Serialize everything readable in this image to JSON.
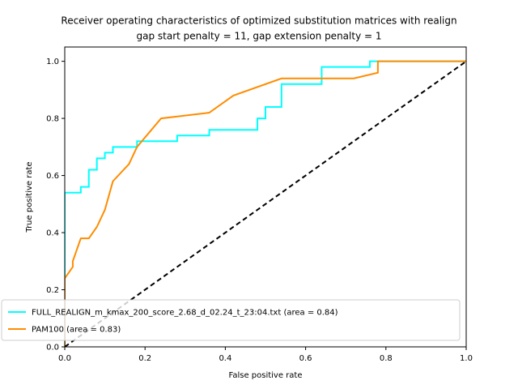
{
  "chart_data": {
    "type": "line",
    "title": "Receiver operating characteristics of optimized substitution matrices with realign",
    "subtitle": "gap start penalty = 11, gap extension penalty = 1",
    "xlabel": "False positive rate",
    "ylabel": "True positive rate",
    "xlim": [
      0.0,
      1.0
    ],
    "ylim": [
      0.0,
      1.05
    ],
    "xticks": [
      "0.0",
      "0.2",
      "0.4",
      "0.6",
      "0.8",
      "1.0"
    ],
    "yticks": [
      "0.0",
      "0.2",
      "0.4",
      "0.6",
      "0.8",
      "1.0"
    ],
    "grid": false,
    "legend_position": "lower-left",
    "series": [
      {
        "name": "FULL_REALIGN_m_kmax_200_score_2.68_d_02.24_t_23:04.txt (area = 0.84)",
        "color": "#00ffff",
        "step": true,
        "x": [
          0.0,
          0.0,
          0.04,
          0.04,
          0.06,
          0.06,
          0.08,
          0.08,
          0.1,
          0.1,
          0.12,
          0.12,
          0.18,
          0.18,
          0.28,
          0.28,
          0.36,
          0.36,
          0.48,
          0.48,
          0.5,
          0.5,
          0.54,
          0.54,
          0.64,
          0.64,
          0.76,
          0.76,
          1.0
        ],
        "y": [
          0.0,
          0.54,
          0.54,
          0.56,
          0.56,
          0.62,
          0.62,
          0.66,
          0.66,
          0.68,
          0.68,
          0.7,
          0.7,
          0.72,
          0.72,
          0.74,
          0.74,
          0.76,
          0.76,
          0.8,
          0.8,
          0.84,
          0.84,
          0.92,
          0.92,
          0.98,
          0.98,
          1.0,
          1.0
        ]
      },
      {
        "name": "PAM100 (area = 0.83)",
        "color": "#ff8c00",
        "step": false,
        "x": [
          0.0,
          0.0,
          0.02,
          0.02,
          0.04,
          0.06,
          0.08,
          0.1,
          0.12,
          0.16,
          0.18,
          0.24,
          0.36,
          0.42,
          0.54,
          0.64,
          0.72,
          0.78,
          0.78,
          1.0
        ],
        "y": [
          0.0,
          0.24,
          0.28,
          0.3,
          0.38,
          0.38,
          0.42,
          0.48,
          0.58,
          0.64,
          0.7,
          0.8,
          0.82,
          0.88,
          0.94,
          0.94,
          0.94,
          0.96,
          1.0,
          1.0
        ]
      }
    ],
    "reference_line": {
      "x": [
        0.0,
        1.0
      ],
      "y": [
        0.0,
        1.0
      ],
      "color": "#000000",
      "style": "dashed"
    }
  }
}
